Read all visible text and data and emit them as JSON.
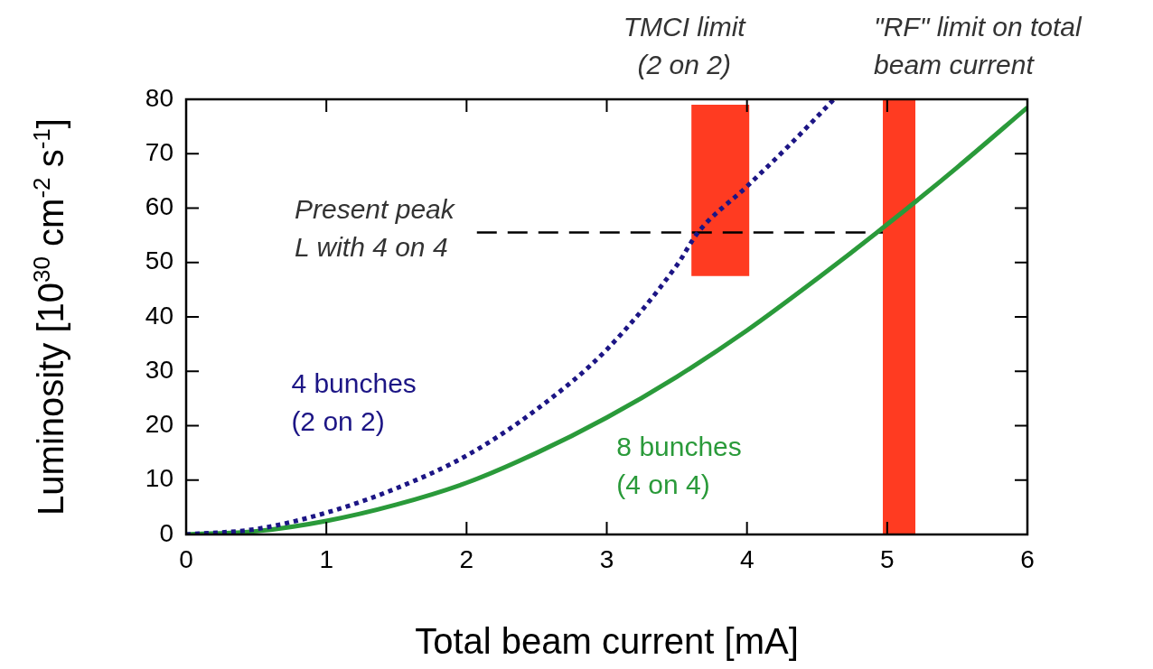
{
  "chart_data": {
    "type": "line",
    "xlabel": "Total beam current [mA]",
    "ylabel": "Luminosity [10$^{30}$ cm$^{-2}$ s$^{-1}$]",
    "xlim": [
      0,
      6
    ],
    "ylim": [
      0,
      80
    ],
    "xticks": [
      0,
      1,
      2,
      3,
      4,
      5,
      6
    ],
    "yticks": [
      0,
      10,
      20,
      30,
      40,
      50,
      60,
      70,
      80
    ],
    "grid": false,
    "legend": false,
    "marker": "none",
    "series": [
      {
        "name": "4 bunches\n(2 on 2)",
        "color": "#1c1585",
        "line_style": "dotted",
        "x": [
          0,
          0.5,
          1,
          1.5,
          2,
          2.5,
          3,
          3.5,
          3.65,
          4,
          4.3,
          4.62
        ],
        "values": [
          0,
          1,
          4,
          8.5,
          14.5,
          23,
          34,
          49.5,
          55.5,
          64,
          71.5,
          80
        ]
      },
      {
        "type": "bar",
        "x": [
          3.81,
          5.085
        ],
        "base": [
          47.5,
          0
        ],
        "values": [
          31.5,
          80
        ],
        "color": "#ff3b21"
      },
      {
        "name": "8 bunches\n(4 on 4)",
        "color": "#2a9a3a",
        "line_style": "solid",
        "x": [
          0,
          0.5,
          1,
          1.5,
          2,
          2.5,
          3,
          3.5,
          4,
          4.5,
          5,
          5.5,
          6
        ],
        "values": [
          0,
          0.6,
          2.5,
          5.5,
          9.5,
          15,
          21.5,
          29,
          37.5,
          47,
          57,
          67.5,
          78.5
        ]
      }
    ],
    "annotations": [
      "TMCI limit\n(2 on 2)",
      "\"RF\" limit on total\nbeam current"
    ],
    "ref_lines": [
      {
        "axis": "y",
        "value": 55.5,
        "line_style": "dashed",
        "color": "#000000",
        "label": "Present peak\nL with 4 on 4"
      }
    ]
  }
}
